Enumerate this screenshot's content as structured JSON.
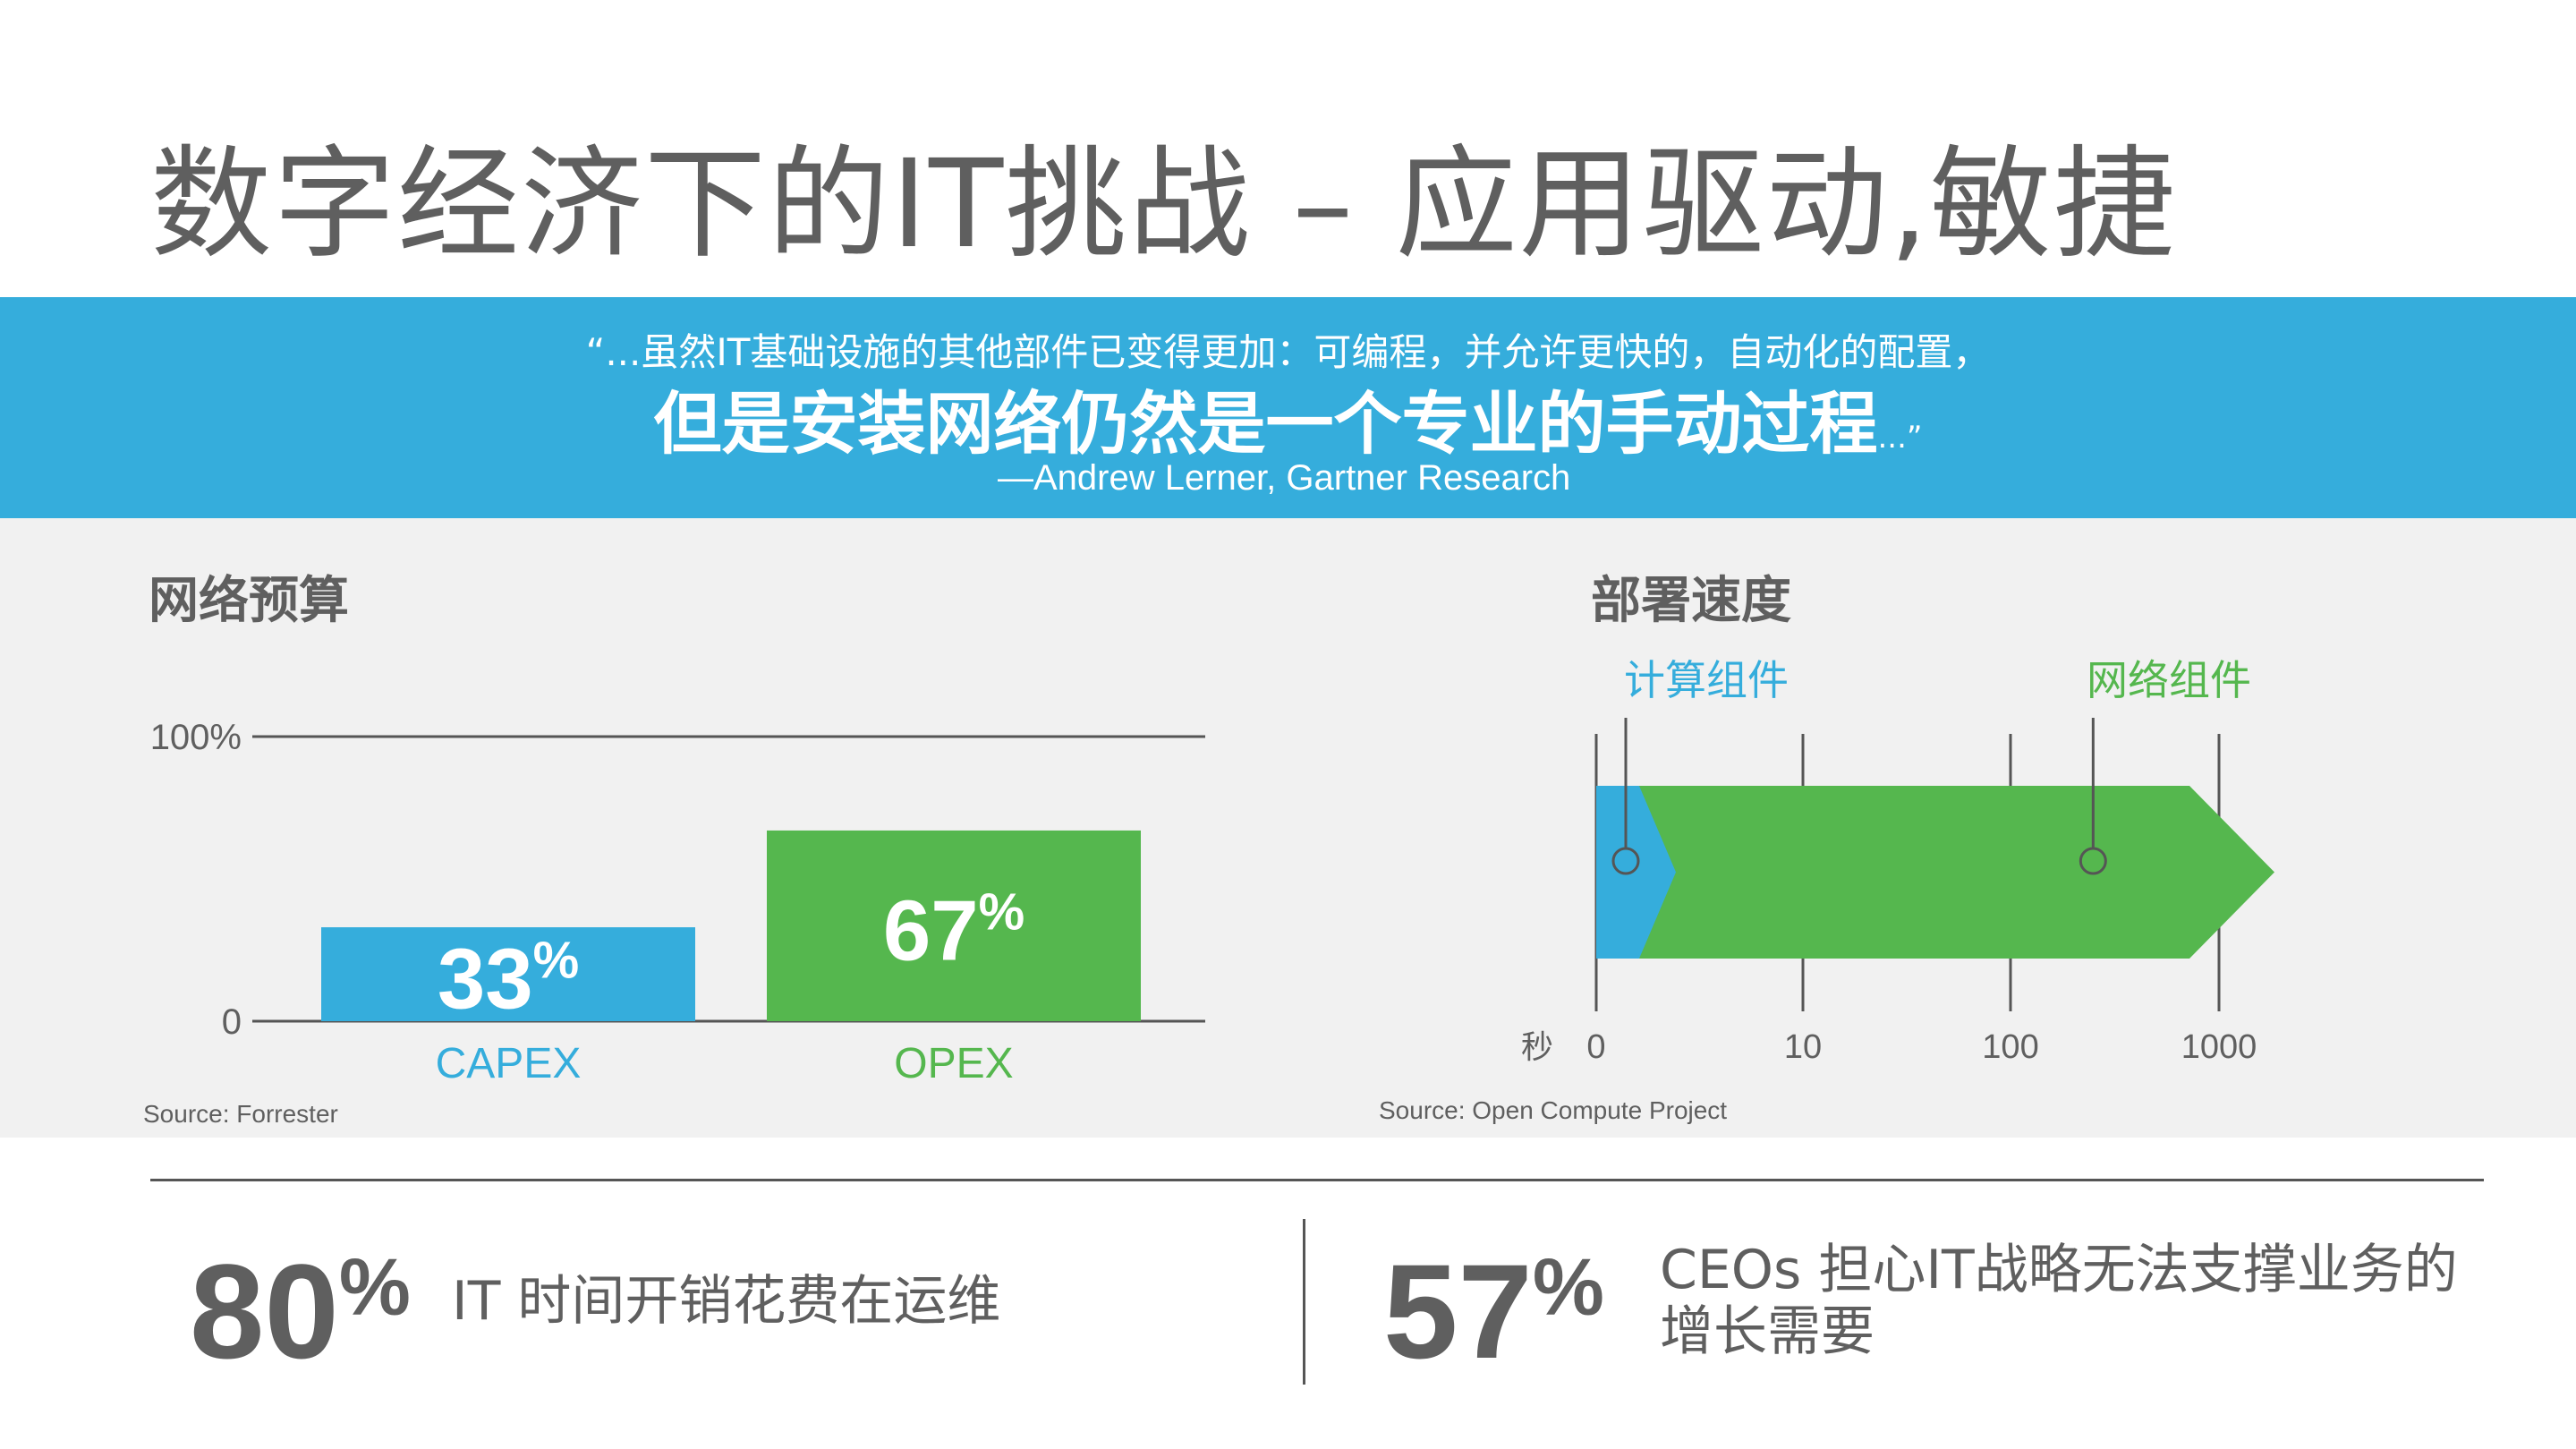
{
  "title": "数字经济下的IT挑战 – 应用驱动,敏捷",
  "quote": {
    "line1": "“...虽然IT基础设施的其他部件已变得更加：可编程，并允许更快的，自动化的配置，",
    "line2": "但是安装网络仍然是一个专业的手动过程",
    "line2_suffix": "...”",
    "attribution": "—Andrew Lerner, Gartner Research"
  },
  "budget": {
    "heading": "网络预算",
    "source": "Source: Forrester"
  },
  "deploy": {
    "heading": "部署速度",
    "source": "Source: Open Compute Project"
  },
  "colors": {
    "blue": "#35ADDC",
    "green": "#55B74E",
    "gray_text": "#5f5f5f"
  },
  "chart_data": [
    {
      "type": "bar",
      "title": "网络预算",
      "categories": [
        "CAPEX",
        "OPEX"
      ],
      "values": [
        33,
        67
      ],
      "value_labels": [
        "33",
        "67"
      ],
      "value_suffix": "%",
      "ylim": [
        0,
        100
      ],
      "yticks": [
        "0",
        "100%"
      ],
      "colors": [
        "#35ADDC",
        "#55B74E"
      ]
    },
    {
      "type": "bar",
      "title": "部署速度",
      "orientation": "horizontal",
      "scale": "log",
      "unit_label": "秒",
      "ticks": [
        "0",
        "10",
        "100",
        "1000"
      ],
      "series": [
        {
          "name": "计算组件",
          "value": 1.5,
          "color": "#35ADDC"
        },
        {
          "name": "网络组件",
          "value": 250,
          "color": "#55B74E"
        }
      ]
    }
  ],
  "stats": [
    {
      "number": "80",
      "suffix": "%",
      "text": "IT 时间开销花费在运维"
    },
    {
      "number": "57",
      "suffix": "%",
      "text": "CEOs 担心IT战略无法支撑业务的增长需要"
    }
  ]
}
